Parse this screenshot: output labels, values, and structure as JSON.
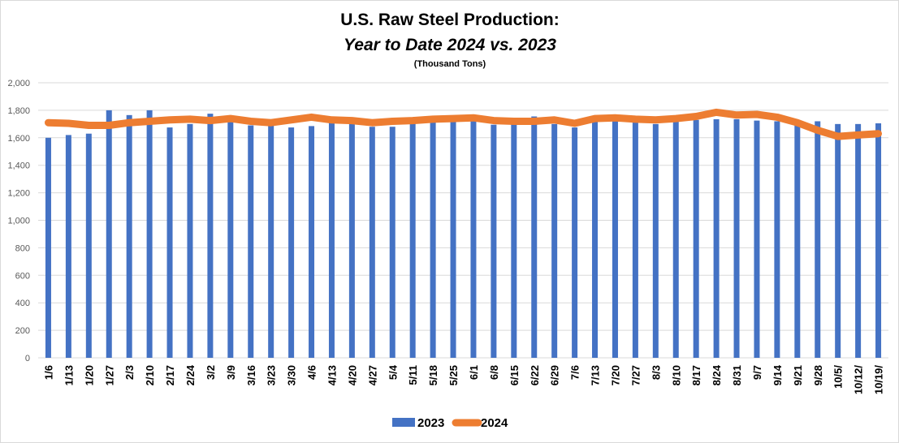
{
  "chart_data": {
    "type": "bar",
    "title": "U.S. Raw Steel Production:",
    "subtitle": "Year to Date 2024 vs. 2023",
    "unit_note": "(Thousand Tons)",
    "xlabel": "",
    "ylabel": "",
    "ylim": [
      0,
      2000
    ],
    "yticks": [
      0,
      200,
      400,
      600,
      800,
      1000,
      1200,
      1400,
      1600,
      1800,
      2000
    ],
    "ytick_labels": [
      "0",
      "200",
      "400",
      "600",
      "800",
      "1,000",
      "1,200",
      "1,400",
      "1,600",
      "1,800",
      "2,000"
    ],
    "grid": true,
    "legend_position": "bottom",
    "categories": [
      "1/6",
      "1/13",
      "1/20",
      "1/27",
      "2/3",
      "2/10",
      "2/17",
      "2/24",
      "3/2",
      "3/9",
      "3/16",
      "3/23",
      "3/30",
      "4/6",
      "4/13",
      "4/20",
      "4/27",
      "5/4",
      "5/11",
      "5/18",
      "5/25",
      "6/1",
      "6/8",
      "6/15",
      "6/22",
      "6/29",
      "7/6",
      "7/13",
      "7/20",
      "7/27",
      "8/3",
      "8/10",
      "8/17",
      "8/24",
      "8/31",
      "9/7",
      "9/14",
      "9/21",
      "9/28",
      "10/5/",
      "10/12/",
      "10/19/"
    ],
    "series": [
      {
        "name": "2023",
        "type": "bar",
        "color": "#4472C4",
        "values": [
          1600,
          1620,
          1630,
          1800,
          1765,
          1800,
          1675,
          1700,
          1775,
          1720,
          1690,
          1690,
          1675,
          1685,
          1715,
          1700,
          1680,
          1680,
          1710,
          1715,
          1715,
          1720,
          1695,
          1745,
          1755,
          1700,
          1675,
          1720,
          1730,
          1720,
          1700,
          1720,
          1730,
          1735,
          1735,
          1725,
          1720,
          1690,
          1720,
          1700,
          1700,
          1705
        ]
      },
      {
        "name": "2024",
        "type": "line",
        "color": "#ED7D31",
        "values": [
          1710,
          1705,
          1690,
          1690,
          1710,
          1720,
          1730,
          1735,
          1725,
          1740,
          1720,
          1710,
          1730,
          1750,
          1730,
          1725,
          1710,
          1720,
          1725,
          1735,
          1740,
          1745,
          1725,
          1720,
          1720,
          1730,
          1705,
          1740,
          1745,
          1735,
          1730,
          1740,
          1755,
          1785,
          1765,
          1770,
          1750,
          1710,
          1655,
          1610,
          1620,
          1630
        ]
      }
    ]
  }
}
